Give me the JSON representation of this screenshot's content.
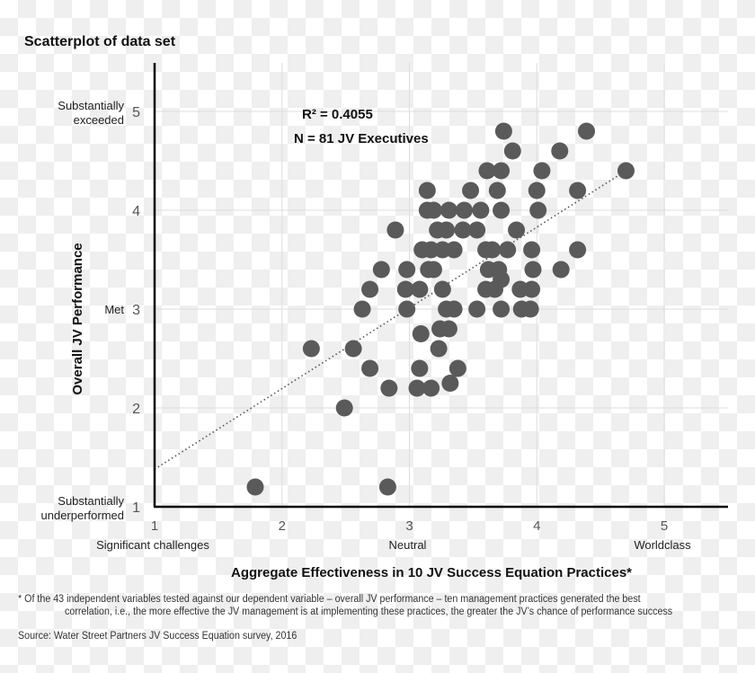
{
  "chart_data": {
    "type": "scatter",
    "title": "Scatterplot of data set",
    "xlabel": "Aggregate Effectiveness in 10 JV Success Equation Practices*",
    "ylabel": "Overall JV Performance",
    "xlim": [
      1,
      5.45
    ],
    "ylim": [
      1,
      5.45
    ],
    "x_ticks": [
      1,
      2,
      3,
      4,
      5
    ],
    "y_ticks": [
      1,
      2,
      3,
      4,
      5
    ],
    "x_category_labels": [
      {
        "at": 1,
        "label": "Significant challenges"
      },
      {
        "at": 3,
        "label": "Neutral"
      },
      {
        "at": 5,
        "label": "Worldclass"
      }
    ],
    "y_category_labels": [
      {
        "at": 5,
        "label": "Substantially exceeded"
      },
      {
        "at": 3,
        "label": "Met"
      },
      {
        "at": 1,
        "label": "Substantially underperformed"
      }
    ],
    "grid": true,
    "annotations": [
      "R² = 0.4055",
      "N = 81 JV Executives"
    ],
    "trendline": {
      "style": "dotted",
      "x": [
        1,
        4.7
      ],
      "y": [
        1.38,
        4.4
      ]
    },
    "marker_color": "#5a5a5a",
    "points": [
      [
        3.74,
        4.8
      ],
      [
        4.39,
        4.8
      ],
      [
        3.81,
        4.6
      ],
      [
        4.18,
        4.6
      ],
      [
        3.61,
        4.4
      ],
      [
        3.72,
        4.4
      ],
      [
        4.04,
        4.4
      ],
      [
        4.7,
        4.4
      ],
      [
        3.14,
        4.2
      ],
      [
        3.48,
        4.2
      ],
      [
        3.69,
        4.2
      ],
      [
        4.0,
        4.2
      ],
      [
        4.32,
        4.2
      ],
      [
        3.14,
        4.0
      ],
      [
        3.19,
        4.0
      ],
      [
        3.31,
        4.0
      ],
      [
        3.43,
        4.0
      ],
      [
        3.56,
        4.0
      ],
      [
        3.72,
        4.0
      ],
      [
        4.01,
        4.0
      ],
      [
        2.89,
        3.8
      ],
      [
        3.22,
        3.8
      ],
      [
        3.29,
        3.8
      ],
      [
        3.42,
        3.8
      ],
      [
        3.53,
        3.8
      ],
      [
        3.84,
        3.8
      ],
      [
        3.1,
        3.6
      ],
      [
        3.17,
        3.6
      ],
      [
        3.26,
        3.6
      ],
      [
        3.35,
        3.6
      ],
      [
        3.6,
        3.6
      ],
      [
        3.65,
        3.6
      ],
      [
        3.77,
        3.6
      ],
      [
        3.96,
        3.6
      ],
      [
        4.32,
        3.6
      ],
      [
        2.78,
        3.4
      ],
      [
        2.98,
        3.4
      ],
      [
        3.15,
        3.4
      ],
      [
        3.19,
        3.4
      ],
      [
        3.62,
        3.4
      ],
      [
        3.7,
        3.4
      ],
      [
        3.97,
        3.4
      ],
      [
        4.19,
        3.4
      ],
      [
        3.72,
        3.3
      ],
      [
        2.69,
        3.2
      ],
      [
        2.97,
        3.2
      ],
      [
        3.08,
        3.2
      ],
      [
        3.26,
        3.2
      ],
      [
        3.6,
        3.2
      ],
      [
        3.67,
        3.2
      ],
      [
        3.87,
        3.2
      ],
      [
        3.96,
        3.2
      ],
      [
        2.63,
        3.0
      ],
      [
        2.98,
        3.0
      ],
      [
        3.29,
        3.0
      ],
      [
        3.35,
        3.0
      ],
      [
        3.53,
        3.0
      ],
      [
        3.72,
        3.0
      ],
      [
        3.88,
        3.0
      ],
      [
        3.95,
        3.0
      ],
      [
        3.09,
        2.75
      ],
      [
        3.24,
        2.8
      ],
      [
        3.31,
        2.8
      ],
      [
        2.23,
        2.6
      ],
      [
        2.56,
        2.6
      ],
      [
        3.23,
        2.6
      ],
      [
        2.69,
        2.4
      ],
      [
        3.08,
        2.4
      ],
      [
        3.38,
        2.4
      ],
      [
        3.32,
        2.25
      ],
      [
        2.84,
        2.2
      ],
      [
        3.06,
        2.2
      ],
      [
        3.17,
        2.2
      ],
      [
        2.49,
        2.0
      ],
      [
        1.79,
        1.2
      ],
      [
        2.83,
        1.2
      ]
    ]
  },
  "footnote": {
    "line1": "* Of the 43 independent variables tested against our dependent variable – overall JV performance – ten management practices generated the best",
    "line2": "correlation, i.e., the more effective the JV management is at implementing these practices, the greater the JV’s chance of performance success"
  },
  "source": "Source: Water Street Partners JV Success Equation survey, 2016"
}
